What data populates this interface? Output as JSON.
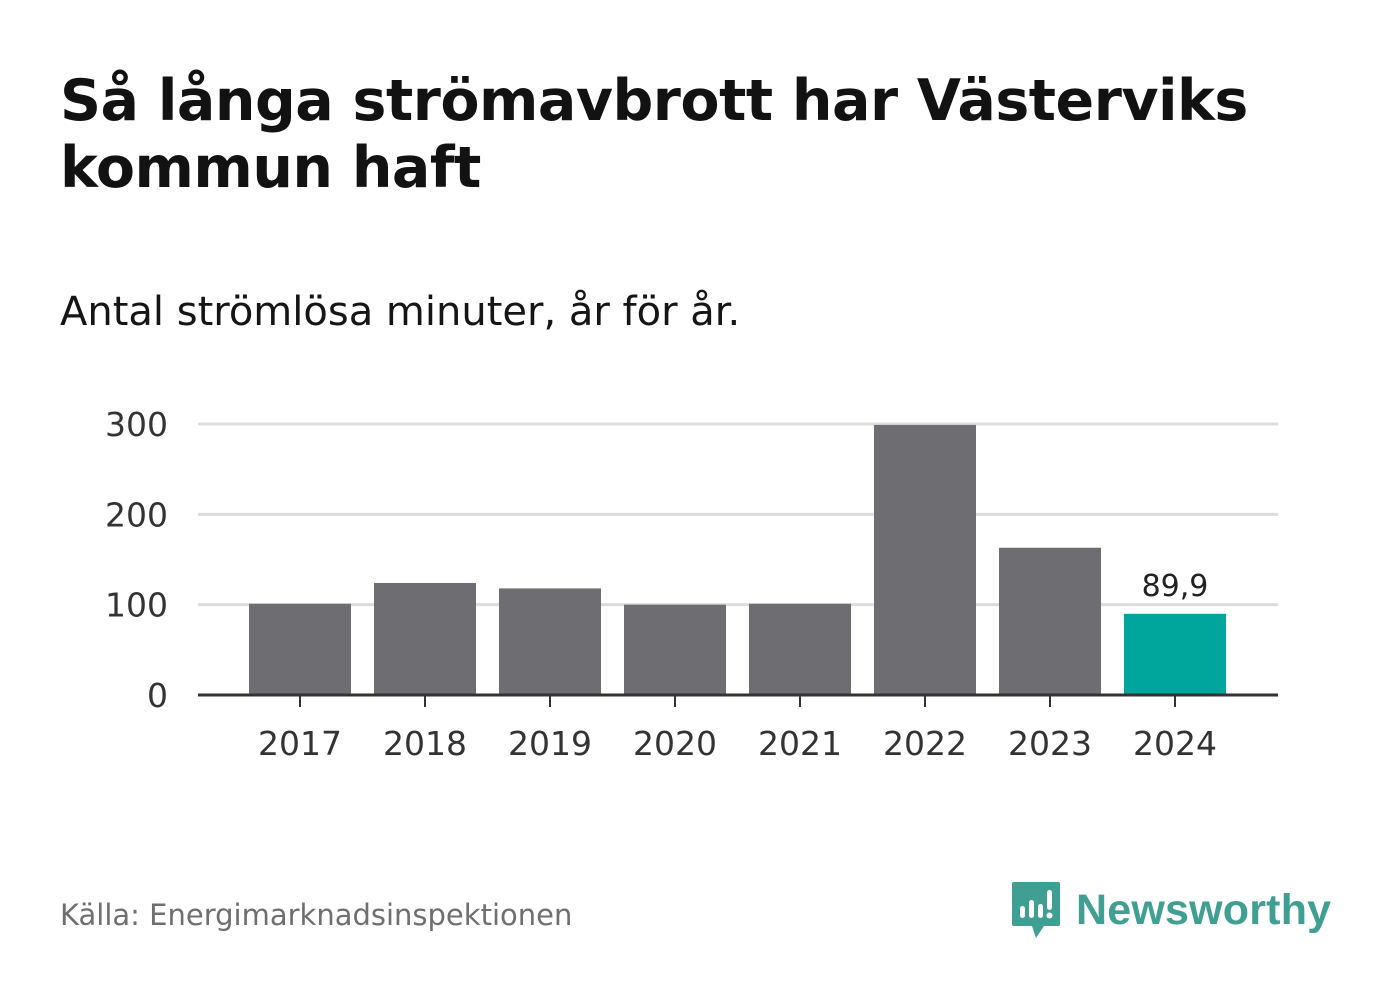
{
  "title": "Så långa strömavbrott har Västerviks kommun haft",
  "subtitle": "Antal strömlösa minuter, år för år.",
  "source": "Källa: Energimarknadsinspektionen",
  "brand": {
    "name": "Newsworthy",
    "icon": "newsworthy-logo-icon",
    "color": "#3f9f93"
  },
  "colors": {
    "bar": "#6e6d72",
    "highlight": "#00a59b",
    "grid": "#dcdcdc",
    "axis": "#333333"
  },
  "chart_data": {
    "type": "bar",
    "title": "Så långa strömavbrott har Västerviks kommun haft",
    "subtitle": "Antal strömlösa minuter, år för år.",
    "xlabel": "",
    "ylabel": "",
    "categories": [
      "2017",
      "2018",
      "2019",
      "2020",
      "2021",
      "2022",
      "2023",
      "2024"
    ],
    "values": [
      101,
      124,
      118,
      100,
      101,
      299,
      163,
      89.9
    ],
    "highlight_index": 7,
    "data_labels": [
      {
        "index": 7,
        "text": "89,9"
      }
    ],
    "ylim": [
      0,
      300
    ],
    "yticks": [
      0,
      100,
      200,
      300
    ],
    "ytick_labels": [
      "0",
      "100",
      "200",
      "300"
    ],
    "grid": true,
    "legend": "none"
  }
}
